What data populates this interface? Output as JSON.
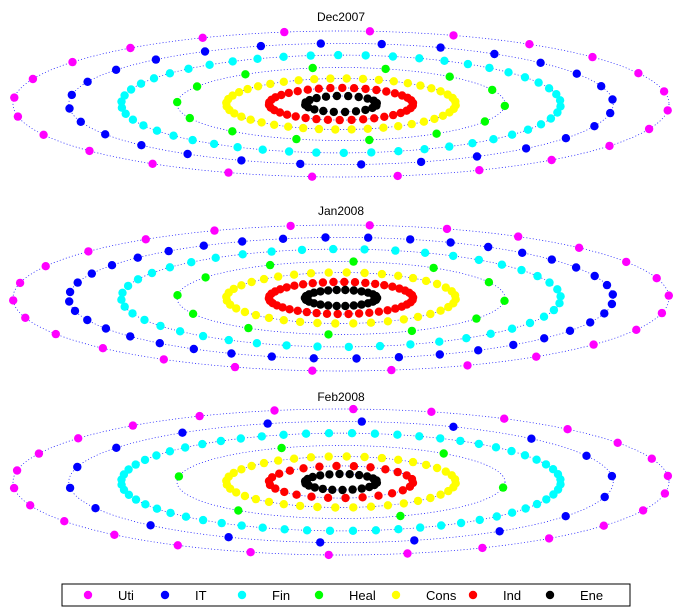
{
  "chart_data": {
    "type": "scatter",
    "layout": "concentric elliptical rings of sector dots, three stacked panels",
    "sector_order": [
      "Uti",
      "IT",
      "Fin",
      "Heal",
      "Cons",
      "Ind",
      "Ene"
    ],
    "legend": {
      "position": "bottom",
      "entries": [
        {
          "label": "Uti",
          "color": "#ff00ff"
        },
        {
          "label": "IT",
          "color": "#0000ff"
        },
        {
          "label": "Fin",
          "color": "#00ffff"
        },
        {
          "label": "Heal",
          "color": "#00ff00"
        },
        {
          "label": "Cons",
          "color": "#ffff00"
        },
        {
          "label": "Ind",
          "color": "#ff0000"
        },
        {
          "label": "Ene",
          "color": "#000000"
        }
      ]
    },
    "guide_line_color": "#0000ff",
    "panels": [
      {
        "title": "Dec2007",
        "rings": [
          {
            "radius": 1.0,
            "sector": "Uti",
            "n_dots": 24,
            "phase": 0.35
          },
          {
            "radius": 0.83,
            "sector": "IT",
            "n_dots": 28,
            "phase": 0.15
          },
          {
            "radius": 0.67,
            "sector": "Fin",
            "n_dots": 50,
            "phase": 0.05
          },
          {
            "radius": 0.5,
            "sector": "Heal",
            "n_dots": 14,
            "phase": 0.5
          },
          {
            "radius": 0.35,
            "sector": "Cons",
            "n_dots": 44,
            "phase": 0.05
          },
          {
            "radius": 0.22,
            "sector": "Ind",
            "n_dots": 38,
            "phase": 0.1
          },
          {
            "radius": 0.11,
            "sector": "Ene",
            "n_dots": 20,
            "phase": 0.2
          }
        ]
      },
      {
        "title": "Jan2008",
        "rings": [
          {
            "radius": 1.0,
            "sector": "Uti",
            "n_dots": 26,
            "phase": 0.45
          },
          {
            "radius": 0.83,
            "sector": "IT",
            "n_dots": 40,
            "phase": 0.1
          },
          {
            "radius": 0.67,
            "sector": "Fin",
            "n_dots": 44,
            "phase": 0.25
          },
          {
            "radius": 0.5,
            "sector": "Heal",
            "n_dots": 12,
            "phase": 0.6
          },
          {
            "radius": 0.35,
            "sector": "Cons",
            "n_dots": 40,
            "phase": 0.05
          },
          {
            "radius": 0.22,
            "sector": "Ind",
            "n_dots": 42,
            "phase": 0.12
          },
          {
            "radius": 0.11,
            "sector": "Ene",
            "n_dots": 26,
            "phase": 0.0
          }
        ]
      },
      {
        "title": "Feb2008",
        "rings": [
          {
            "radius": 1.0,
            "sector": "Uti",
            "n_dots": 26,
            "phase": 0.4
          },
          {
            "radius": 0.83,
            "sector": "IT",
            "n_dots": 18,
            "phase": 0.6
          },
          {
            "radius": 0.67,
            "sector": "Fin",
            "n_dots": 60,
            "phase": 0.05
          },
          {
            "radius": 0.5,
            "sector": "Heal",
            "n_dots": 6,
            "phase": 1.2
          },
          {
            "radius": 0.35,
            "sector": "Cons",
            "n_dots": 40,
            "phase": 0.05
          },
          {
            "radius": 0.22,
            "sector": "Ind",
            "n_dots": 26,
            "phase": 0.3
          },
          {
            "radius": 0.11,
            "sector": "Ene",
            "n_dots": 22,
            "phase": 0.1
          }
        ]
      }
    ]
  }
}
